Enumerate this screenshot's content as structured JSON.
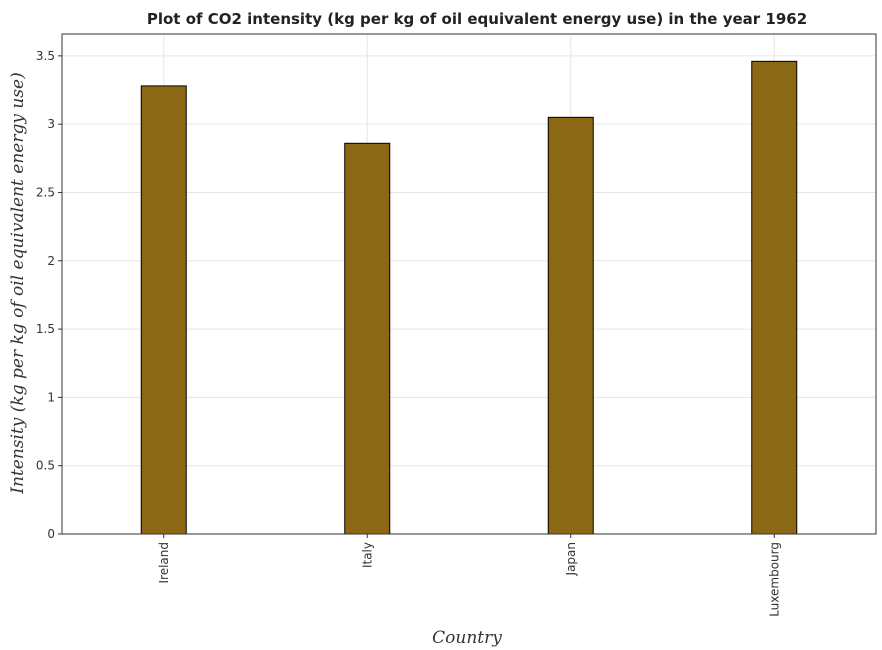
{
  "chart_data": {
    "type": "bar",
    "title": "Plot of CO2 intensity (kg per kg of oil equivalent energy use) in the year 1962",
    "xlabel": "Country",
    "ylabel": "Intensity (kg per kg of oil equivalent energy use)",
    "categories": [
      "Ireland",
      "Italy",
      "Japan",
      "Luxembourg"
    ],
    "values": [
      3.28,
      2.86,
      3.05,
      3.46
    ],
    "ylim": [
      0,
      3.66
    ],
    "yticks": [
      0,
      0.5,
      1,
      1.5,
      2,
      2.5,
      3,
      3.5
    ],
    "ytick_labels": [
      "0",
      "0.5",
      "1",
      "1.5",
      "2",
      "2.5",
      "3",
      "3.5"
    ],
    "grid": true,
    "bar_color": "#8b6914",
    "bar_edge_color": "#000000",
    "grid_color": "#e6e6e6"
  }
}
